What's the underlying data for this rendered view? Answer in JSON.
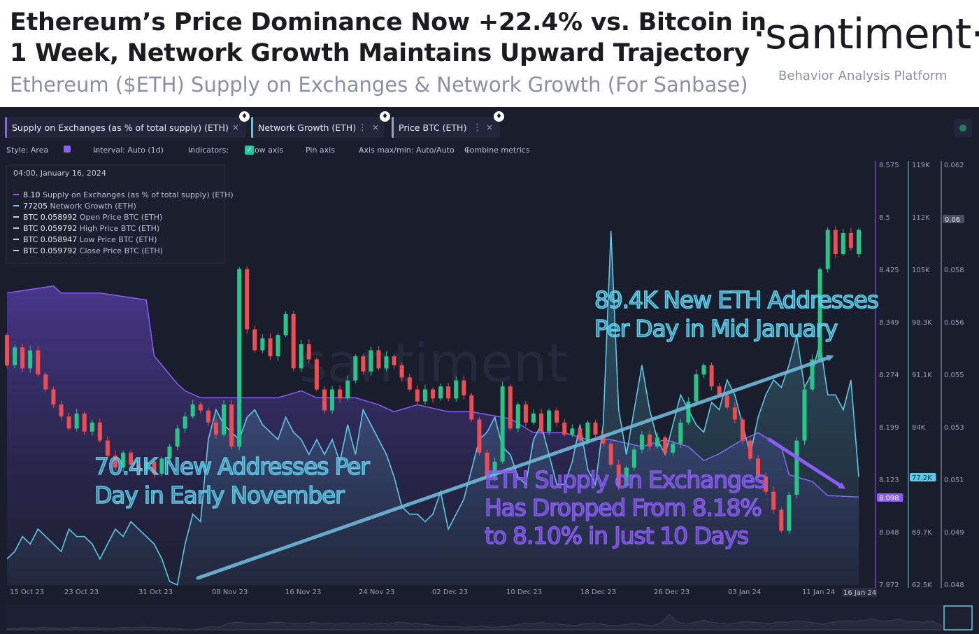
{
  "header": {
    "title_line1": "Ethereum’s Price Dominance Now +22.4% vs. Bitcoin in",
    "title_line2": "1 Week, Network Growth Maintains Upward Trajectory",
    "subtitle": "Ethereum ($ETH) Supply on Exchanges & Network Growth (For Sanbase)",
    "brand": "·santiment·",
    "brand_tagline": "Behavior Analysis Platform"
  },
  "tabs": [
    {
      "label": "Supply on Exchanges (as % of total supply) (ETH)",
      "color": "#8b5cf6"
    },
    {
      "label": "Network Growth (ETH)",
      "color": "#5fc8e6"
    },
    {
      "label": "Price BTC (ETH)",
      "color": "#9aa0b8"
    }
  ],
  "toolbar": {
    "style": "Style: Area",
    "interval": "Interval: Auto (1d)",
    "indicators": "Indicators:",
    "show_axis": "Show axis",
    "pin_axis": "Pin axis",
    "axis_minmax": "Axis max/min: Auto/Auto",
    "combine": "Combine metrics"
  },
  "icons": {
    "dots": "⋮",
    "close": "×",
    "eth": "♦",
    "check": "✓",
    "chevron": "⌄",
    "plus": "+"
  },
  "tooltip": {
    "date": "04:00, January 16, 2024",
    "rows": [
      {
        "value": "8.10",
        "label": "Supply on Exchanges (as % of total supply) (ETH)",
        "color": "#8b5cf6"
      },
      {
        "value": "77205",
        "label": "Network Growth (ETH)",
        "color": "#5fc8e6"
      },
      {
        "value": "BTC 0.058992",
        "label": "Open Price BTC (ETH)",
        "color": "#c8ccd8"
      },
      {
        "value": "BTC 0.059792",
        "label": "High Price BTC (ETH)",
        "color": "#c8ccd8"
      },
      {
        "value": "BTC 0.058947",
        "label": "Low Price BTC (ETH)",
        "color": "#c8ccd8"
      },
      {
        "value": "BTC 0.059792",
        "label": "Close Price BTC (ETH)",
        "color": "#c8ccd8"
      }
    ]
  },
  "watermark": "santiment",
  "annotations": [
    {
      "text": [
        "89.4K New ETH Addresses",
        "Per Day in Mid January"
      ],
      "color": "#5fd3f0"
    },
    {
      "text": [
        "70.4K New Addresses Per",
        "Day in Early November"
      ],
      "color": "#5fc8e6"
    },
    {
      "text": [
        "ETH Supply on Exchanges",
        "Has Dropped From 8.18%",
        "to 8.10% in Just 10 Days"
      ],
      "color": "#8b5cf6"
    }
  ],
  "chart_data": {
    "type": "candlestick-area-combo",
    "x_tick_labels": [
      "15 Oct 23",
      "23 Oct 23",
      "31 Oct 23",
      "08 Nov 23",
      "16 Nov 23",
      "24 Nov 23",
      "02 Dec 23",
      "10 Dec 23",
      "18 Dec 23",
      "26 Dec 23",
      "03 Jan 24",
      "11 Jan 24"
    ],
    "x_highlight_label": "16 Jan 24",
    "axes": {
      "supply": {
        "ticks": [
          "8.575",
          "8.5",
          "8.425",
          "8.349",
          "8.274",
          "8.199",
          "8.123",
          "8.048",
          "7.972"
        ],
        "range": [
          7.972,
          8.575
        ],
        "current": "8.098",
        "color": "#8b5cf6"
      },
      "network": {
        "ticks": [
          "119K",
          "112K",
          "105K",
          "98.3K",
          "91.1K",
          "84K",
          "77.2K",
          "69.7K",
          "62.5K"
        ],
        "range": [
          62.5,
          119
        ],
        "current": "77.2K",
        "color": "#5fc8e6"
      },
      "price": {
        "ticks": [
          "0.062",
          "0.06",
          "0.058",
          "0.056",
          "0.055",
          "0.053",
          "0.051",
          "0.049",
          "0.048"
        ],
        "range": [
          0.048,
          0.062
        ],
        "current": "0.06",
        "color": "#9aa0b8"
      }
    },
    "supply_series": [
      [
        0,
        8.39
      ],
      [
        6,
        8.4
      ],
      [
        7,
        8.39
      ],
      [
        12,
        8.39
      ],
      [
        18,
        8.38
      ],
      [
        19,
        8.3
      ],
      [
        22,
        8.26
      ],
      [
        23,
        8.25
      ],
      [
        25,
        8.24
      ],
      [
        30,
        8.24
      ],
      [
        35,
        8.24
      ],
      [
        38,
        8.25
      ],
      [
        40,
        8.24
      ],
      [
        45,
        8.24
      ],
      [
        48,
        8.23
      ],
      [
        50,
        8.22
      ],
      [
        53,
        8.23
      ],
      [
        57,
        8.22
      ],
      [
        60,
        8.22
      ],
      [
        65,
        8.21
      ],
      [
        68,
        8.19
      ],
      [
        72,
        8.19
      ],
      [
        75,
        8.18
      ],
      [
        78,
        8.18
      ],
      [
        82,
        8.17
      ],
      [
        85,
        8.18
      ],
      [
        88,
        8.17
      ],
      [
        90,
        8.15
      ],
      [
        92,
        8.16
      ],
      [
        95,
        8.18
      ],
      [
        97,
        8.19
      ],
      [
        100,
        8.17
      ],
      [
        101,
        8.13
      ],
      [
        104,
        8.12
      ],
      [
        106,
        8.1
      ],
      [
        110,
        8.098
      ]
    ],
    "network_series": [
      [
        0,
        66
      ],
      [
        1,
        67
      ],
      [
        2,
        69
      ],
      [
        3,
        68
      ],
      [
        4,
        70
      ],
      [
        5,
        69
      ],
      [
        6,
        68
      ],
      [
        7,
        67
      ],
      [
        8,
        70
      ],
      [
        9,
        69
      ],
      [
        10,
        69
      ],
      [
        11,
        68
      ],
      [
        12,
        66
      ],
      [
        13,
        68
      ],
      [
        14,
        70
      ],
      [
        15,
        69
      ],
      [
        16,
        71
      ],
      [
        17,
        70
      ],
      [
        18,
        69
      ],
      [
        19,
        68
      ],
      [
        20,
        66
      ],
      [
        21,
        63
      ],
      [
        22,
        62.5
      ],
      [
        23,
        68
      ],
      [
        24,
        72
      ],
      [
        25,
        71
      ],
      [
        26,
        82
      ],
      [
        27,
        86
      ],
      [
        28,
        84
      ],
      [
        29,
        83
      ],
      [
        30,
        82
      ],
      [
        31,
        85
      ],
      [
        32,
        86
      ],
      [
        33,
        84
      ],
      [
        34,
        83
      ],
      [
        35,
        82
      ],
      [
        36,
        85
      ],
      [
        37,
        83
      ],
      [
        38,
        82
      ],
      [
        39,
        80
      ],
      [
        40,
        82
      ],
      [
        41,
        80
      ],
      [
        42,
        82
      ],
      [
        43,
        79
      ],
      [
        44,
        84
      ],
      [
        45,
        80
      ],
      [
        46,
        86
      ],
      [
        47,
        84
      ],
      [
        48,
        82
      ],
      [
        49,
        80
      ],
      [
        50,
        77
      ],
      [
        51,
        73
      ],
      [
        52,
        72
      ],
      [
        53,
        72
      ],
      [
        54,
        71
      ],
      [
        55,
        72
      ],
      [
        56,
        75
      ],
      [
        57,
        70
      ],
      [
        58,
        72
      ],
      [
        59,
        74
      ],
      [
        60,
        78
      ],
      [
        61,
        82
      ],
      [
        62,
        83
      ],
      [
        63,
        85
      ],
      [
        64,
        81
      ],
      [
        65,
        80
      ],
      [
        66,
        77
      ],
      [
        67,
        76
      ],
      [
        68,
        82
      ],
      [
        69,
        84
      ],
      [
        70,
        80
      ],
      [
        71,
        76
      ],
      [
        72,
        76
      ],
      [
        73,
        79
      ],
      [
        74,
        84
      ],
      [
        75,
        78
      ],
      [
        76,
        76
      ],
      [
        77,
        84
      ],
      [
        78,
        110
      ],
      [
        79,
        86
      ],
      [
        80,
        80
      ],
      [
        81,
        86
      ],
      [
        82,
        92
      ],
      [
        83,
        86
      ],
      [
        84,
        82
      ],
      [
        85,
        80
      ],
      [
        86,
        84
      ],
      [
        87,
        88
      ],
      [
        88,
        86
      ],
      [
        89,
        84
      ],
      [
        90,
        83
      ],
      [
        91,
        87
      ],
      [
        92,
        86
      ],
      [
        93,
        90
      ],
      [
        94,
        88
      ],
      [
        95,
        84
      ],
      [
        96,
        80
      ],
      [
        97,
        85
      ],
      [
        98,
        88
      ],
      [
        99,
        90
      ],
      [
        100,
        89
      ],
      [
        101,
        92
      ],
      [
        102,
        96
      ],
      [
        103,
        89
      ],
      [
        104,
        91
      ],
      [
        105,
        95
      ],
      [
        106,
        88
      ],
      [
        107,
        88
      ],
      [
        108,
        86
      ],
      [
        109,
        90
      ],
      [
        110,
        77
      ]
    ],
    "price_candles": [
      [
        0,
        0.0563,
        0.0553
      ],
      [
        1,
        0.0553,
        0.0559
      ],
      [
        2,
        0.0559,
        0.0552
      ],
      [
        3,
        0.0552,
        0.0558
      ],
      [
        4,
        0.0558,
        0.055
      ],
      [
        5,
        0.055,
        0.0545
      ],
      [
        6,
        0.0545,
        0.054
      ],
      [
        7,
        0.054,
        0.0536
      ],
      [
        8,
        0.0536,
        0.0532
      ],
      [
        9,
        0.0532,
        0.0537
      ],
      [
        10,
        0.0537,
        0.0531
      ],
      [
        11,
        0.0531,
        0.0534
      ],
      [
        12,
        0.0534,
        0.0528
      ],
      [
        13,
        0.0528,
        0.0523
      ],
      [
        14,
        0.0523,
        0.0519
      ],
      [
        15,
        0.0519,
        0.0524
      ],
      [
        16,
        0.0524,
        0.052
      ],
      [
        17,
        0.052,
        0.0518
      ],
      [
        18,
        0.0518,
        0.0521
      ],
      [
        19,
        0.0521,
        0.0517
      ],
      [
        20,
        0.0517,
        0.0522
      ],
      [
        21,
        0.0522,
        0.0526
      ],
      [
        22,
        0.0526,
        0.0532
      ],
      [
        23,
        0.0532,
        0.0536
      ],
      [
        24,
        0.0536,
        0.054
      ],
      [
        25,
        0.054,
        0.0538
      ],
      [
        26,
        0.0538,
        0.0534
      ],
      [
        27,
        0.0534,
        0.053
      ],
      [
        28,
        0.053,
        0.054
      ],
      [
        29,
        0.054,
        0.0526
      ],
      [
        30,
        0.0526,
        0.0585
      ],
      [
        31,
        0.0585,
        0.0565
      ],
      [
        32,
        0.0565,
        0.0558
      ],
      [
        33,
        0.0558,
        0.0562
      ],
      [
        34,
        0.0562,
        0.0556
      ],
      [
        35,
        0.0556,
        0.0563
      ],
      [
        36,
        0.0563,
        0.057
      ],
      [
        37,
        0.057,
        0.0552
      ],
      [
        38,
        0.0552,
        0.056
      ],
      [
        39,
        0.056,
        0.0555
      ],
      [
        40,
        0.0555,
        0.0545
      ],
      [
        41,
        0.0545,
        0.0538
      ],
      [
        42,
        0.0538,
        0.0545
      ],
      [
        43,
        0.0545,
        0.0542
      ],
      [
        44,
        0.0542,
        0.0548
      ],
      [
        45,
        0.0548,
        0.0556
      ],
      [
        46,
        0.0556,
        0.0551
      ],
      [
        47,
        0.0551,
        0.0558
      ],
      [
        48,
        0.0558,
        0.0552
      ],
      [
        49,
        0.0552,
        0.0556
      ],
      [
        50,
        0.0556,
        0.0553
      ],
      [
        51,
        0.0553,
        0.0549
      ],
      [
        52,
        0.0549,
        0.0545
      ],
      [
        53,
        0.0545,
        0.0541
      ],
      [
        54,
        0.0541,
        0.0545
      ],
      [
        55,
        0.0545,
        0.0542
      ],
      [
        56,
        0.0542,
        0.0546
      ],
      [
        57,
        0.0546,
        0.0542
      ],
      [
        58,
        0.0542,
        0.0548
      ],
      [
        59,
        0.0548,
        0.0543
      ],
      [
        60,
        0.0543,
        0.0535
      ],
      [
        61,
        0.0535,
        0.0524
      ],
      [
        62,
        0.0524,
        0.0516
      ],
      [
        63,
        0.0516,
        0.0521
      ],
      [
        64,
        0.0521,
        0.0546
      ],
      [
        65,
        0.0546,
        0.0532
      ],
      [
        66,
        0.0532,
        0.054
      ],
      [
        67,
        0.054,
        0.0534
      ],
      [
        68,
        0.0534,
        0.0537
      ],
      [
        69,
        0.0537,
        0.0531
      ],
      [
        70,
        0.0531,
        0.0538
      ],
      [
        71,
        0.0538,
        0.0534
      ],
      [
        72,
        0.0534,
        0.053
      ],
      [
        73,
        0.053,
        0.0532
      ],
      [
        74,
        0.0532,
        0.0528
      ],
      [
        75,
        0.0528,
        0.0534
      ],
      [
        76,
        0.0534,
        0.053
      ],
      [
        77,
        0.053,
        0.0527
      ],
      [
        78,
        0.0527,
        0.052
      ],
      [
        79,
        0.052,
        0.0513
      ],
      [
        80,
        0.0513,
        0.0519
      ],
      [
        81,
        0.0519,
        0.0525
      ],
      [
        82,
        0.0525,
        0.053
      ],
      [
        83,
        0.053,
        0.0526
      ],
      [
        84,
        0.0526,
        0.0529
      ],
      [
        85,
        0.0529,
        0.0524
      ],
      [
        86,
        0.0524,
        0.0527
      ],
      [
        87,
        0.0527,
        0.0534
      ],
      [
        88,
        0.0534,
        0.0541
      ],
      [
        89,
        0.0541,
        0.055
      ],
      [
        90,
        0.055,
        0.0553
      ],
      [
        91,
        0.0553,
        0.0546
      ],
      [
        92,
        0.0546,
        0.0543
      ],
      [
        93,
        0.0543,
        0.0539
      ],
      [
        94,
        0.0539,
        0.0535
      ],
      [
        95,
        0.0535,
        0.0528
      ],
      [
        96,
        0.0528,
        0.0522
      ],
      [
        97,
        0.0522,
        0.0516
      ],
      [
        98,
        0.0516,
        0.0511
      ],
      [
        99,
        0.0511,
        0.0505
      ],
      [
        100,
        0.0505,
        0.0498
      ],
      [
        101,
        0.0498,
        0.051
      ],
      [
        102,
        0.051,
        0.0528
      ],
      [
        103,
        0.0528,
        0.0545
      ],
      [
        104,
        0.0545,
        0.0555
      ],
      [
        105,
        0.0555,
        0.0585
      ],
      [
        106,
        0.0585,
        0.0598
      ],
      [
        107,
        0.0598,
        0.059
      ],
      [
        108,
        0.059,
        0.0597
      ],
      [
        109,
        0.0597,
        0.0592
      ],
      [
        110,
        0.059,
        0.0598
      ]
    ]
  }
}
